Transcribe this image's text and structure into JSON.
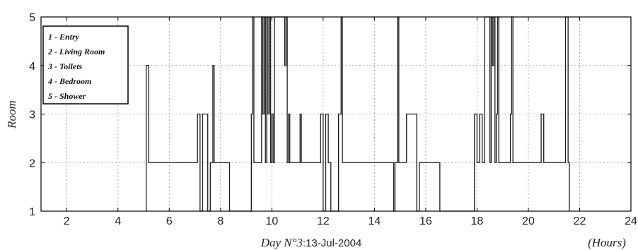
{
  "chart_data": {
    "type": "line",
    "xlabel_prefix": "Day N°3",
    "xlabel_date": ":13-Jul-2004",
    "xlabel_unit": "(Hours)",
    "ylabel": "Room",
    "xlim": [
      1,
      24
    ],
    "ylim": [
      1,
      5
    ],
    "xticks": [
      2,
      4,
      6,
      8,
      10,
      12,
      14,
      16,
      18,
      20,
      22,
      24
    ],
    "yticks": [
      1,
      2,
      3,
      4,
      5
    ],
    "grid": true,
    "legend_position": "top-left",
    "legend": [
      "1 - Entry",
      "2 - Living Room",
      "3 - Toilets",
      "4 - Bedroom",
      "5 - Shower"
    ],
    "series": [
      {
        "x": [
          5.1,
          5.1,
          5.2,
          5.2,
          7.1,
          7.1,
          7.2,
          7.2,
          7.3,
          7.3,
          7.5,
          7.5,
          7.6,
          7.6,
          7.7,
          7.7,
          7.75,
          7.75,
          8.35,
          8.35,
          9.2,
          9.2,
          9.25,
          9.25,
          9.3,
          9.3,
          9.6,
          9.6,
          9.65,
          9.65,
          9.7,
          9.7,
          9.75,
          9.75,
          9.8,
          9.8,
          9.85,
          9.85,
          9.9,
          9.9,
          9.95,
          9.95,
          10.0,
          10.0,
          10.05,
          10.05,
          10.1,
          10.1,
          10.5,
          10.5,
          10.55,
          10.55,
          10.6,
          10.6,
          10.65,
          10.65,
          10.7,
          10.7,
          11.1,
          11.1,
          11.15,
          11.15,
          11.9,
          11.9,
          12.0,
          12.0,
          12.1,
          12.1,
          12.2,
          12.2,
          12.3,
          12.3,
          12.6,
          12.6,
          12.7,
          12.7,
          12.75,
          12.75,
          14.75,
          14.75,
          14.8,
          14.8,
          14.9,
          14.9,
          14.95,
          14.95,
          15.25,
          15.25,
          15.65,
          15.65,
          15.75,
          15.75,
          16.55,
          16.55,
          17.9,
          17.9,
          18.0,
          18.0,
          18.1,
          18.1,
          18.2,
          18.2,
          18.3,
          18.3,
          18.5,
          18.5,
          18.55,
          18.55,
          18.6,
          18.6,
          18.65,
          18.65,
          18.7,
          18.7,
          18.75,
          18.75,
          18.8,
          18.8,
          18.85,
          18.85,
          19.3,
          19.3,
          19.35,
          19.35,
          19.4,
          19.4,
          19.45,
          19.45,
          20.5,
          20.5,
          20.6,
          20.6,
          21.45,
          21.45,
          21.55,
          21.55,
          21.6,
          21.6
        ],
        "y": [
          1,
          4,
          4,
          2,
          2,
          3,
          3,
          1,
          1,
          3,
          3,
          1,
          1,
          2,
          2,
          4,
          4,
          2,
          2,
          1,
          1,
          3,
          3,
          5,
          5,
          2,
          2,
          5,
          5,
          3,
          3,
          5,
          5,
          2,
          2,
          5,
          5,
          3,
          3,
          5,
          5,
          2,
          2,
          3,
          3,
          2,
          2,
          5,
          5,
          4,
          4,
          5,
          5,
          2,
          2,
          3,
          3,
          2,
          2,
          3,
          3,
          2,
          2,
          3,
          3,
          1,
          1,
          3,
          3,
          2,
          2,
          1,
          1,
          3,
          3,
          5,
          5,
          2,
          2,
          1,
          1,
          2,
          2,
          5,
          5,
          2,
          2,
          3,
          3,
          1,
          1,
          2,
          2,
          1,
          1,
          3,
          3,
          2,
          2,
          3,
          3,
          2,
          2,
          5,
          5,
          2,
          2,
          5,
          5,
          4,
          4,
          5,
          5,
          2,
          2,
          3,
          3,
          5,
          5,
          2,
          2,
          3,
          3,
          5,
          5,
          2,
          2,
          2,
          2,
          3,
          3,
          2,
          2,
          5,
          5,
          2,
          2,
          1
        ]
      }
    ]
  }
}
